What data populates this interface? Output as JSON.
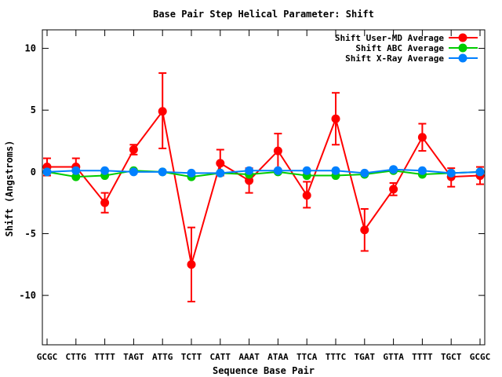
{
  "chart_data": {
    "type": "line",
    "title": "Base Pair Step Helical Parameter: Shift",
    "xlabel": "Sequence Base Pair",
    "ylabel": "Shift (Angstroms)",
    "categories": [
      "GCGC",
      "CTTG",
      "TTTT",
      "TAGT",
      "ATTG",
      "TCTT",
      "CATT",
      "AAAT",
      "ATAA",
      "TTCA",
      "TTTC",
      "TGAT",
      "GTTA",
      "TTTT",
      "TGCT",
      "GCGC"
    ],
    "ylim": [
      -14,
      11.5
    ],
    "yticks": [
      -10,
      -5,
      0,
      5,
      10
    ],
    "grid": false,
    "legend_position": "top-right",
    "series": [
      {
        "name": "Shift User-MD Average",
        "color": "#ff0000",
        "values": [
          0.4,
          0.4,
          -2.5,
          1.8,
          4.9,
          -7.5,
          0.7,
          -0.7,
          1.7,
          -1.9,
          4.3,
          -4.7,
          -1.4,
          2.8,
          -0.4,
          -0.3
        ],
        "err_low": [
          -0.3,
          -0.3,
          -3.3,
          1.4,
          1.9,
          -10.5,
          -0.3,
          -1.7,
          0.2,
          -2.9,
          2.2,
          -6.4,
          -1.9,
          1.7,
          -1.2,
          -1.0
        ],
        "err_high": [
          1.1,
          1.1,
          -1.7,
          2.2,
          8.0,
          -4.5,
          1.8,
          0.3,
          3.1,
          -0.8,
          6.4,
          -3.0,
          -0.9,
          3.9,
          0.3,
          0.4
        ]
      },
      {
        "name": "Shift ABC Average",
        "color": "#00cc00",
        "values": [
          0.0,
          -0.4,
          -0.3,
          0.1,
          0.0,
          -0.4,
          -0.1,
          -0.2,
          0.0,
          -0.3,
          -0.3,
          -0.2,
          0.1,
          -0.2,
          -0.1,
          0.0
        ]
      },
      {
        "name": "Shift X-Ray Average",
        "color": "#0080ff",
        "values": [
          0.0,
          0.1,
          0.1,
          0.0,
          0.0,
          -0.1,
          -0.1,
          0.1,
          0.1,
          0.1,
          0.1,
          -0.1,
          0.2,
          0.1,
          -0.1,
          0.0
        ]
      }
    ]
  }
}
